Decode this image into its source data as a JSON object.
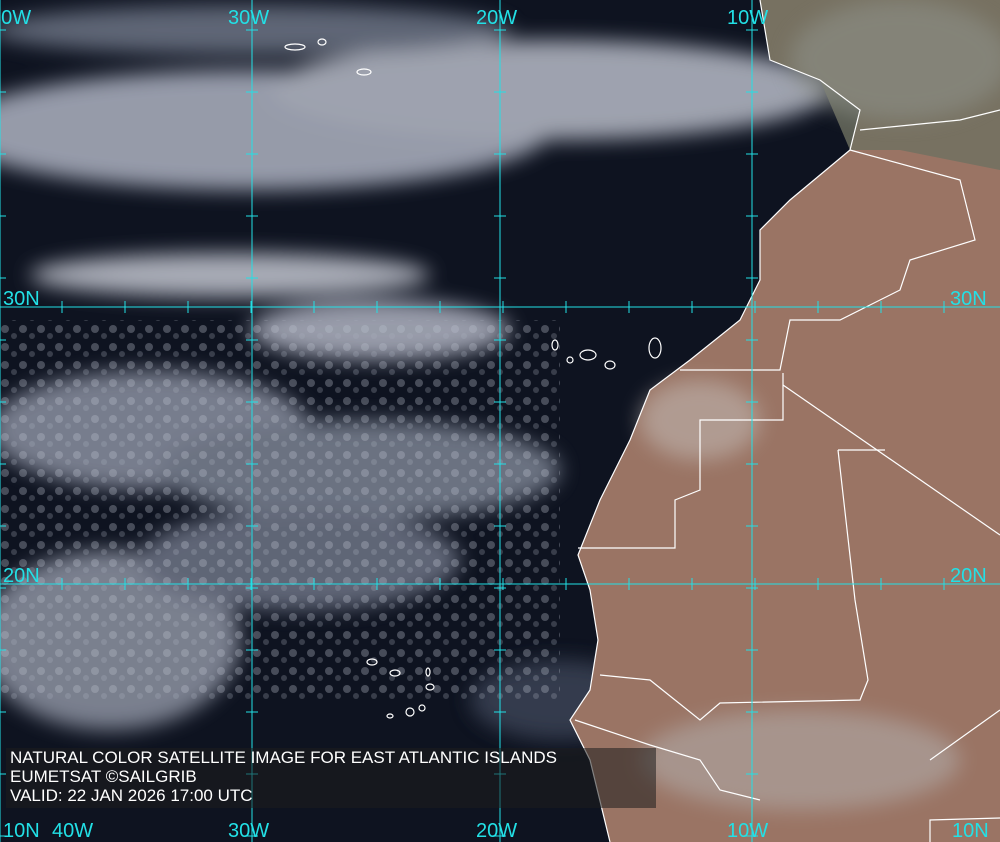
{
  "title": "NATURAL COLOR SATELLITE IMAGE FOR EAST ATLANTIC ISLANDS",
  "credit": "EUMETSAT ©SAILGRIB",
  "valid": "VALID:  22 JAN 2026 17:00 UTC",
  "grid": {
    "longitudes": [
      "40W",
      "30W",
      "20W",
      "10W"
    ],
    "latitudes": [
      "30N",
      "20N",
      "10N"
    ],
    "line_color": "#22e0e6"
  },
  "colors": {
    "ocean": "#0e1320",
    "land": "#9a7060",
    "cloud": "#c8ccd6",
    "border": "#ffffff"
  }
}
